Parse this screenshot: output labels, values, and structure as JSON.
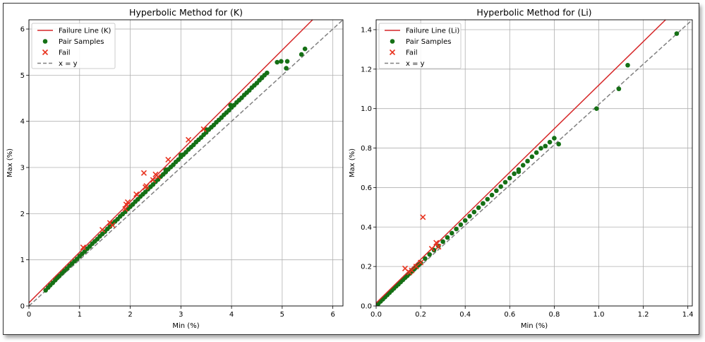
{
  "colors": {
    "failure_line": "#d62728",
    "pair_samples": "#157015",
    "fail": "#e8331f",
    "identity": "#808080",
    "grid": "#b0b0b0"
  },
  "chart_data": [
    {
      "type": "scatter",
      "title": "Hyperbolic Method for (K)",
      "xlabel": "Min (%)",
      "ylabel": "Max (%)",
      "xlim": [
        0,
        6.2
      ],
      "ylim": [
        0,
        6.2
      ],
      "xticks": [
        0,
        1,
        2,
        3,
        4,
        5,
        6
      ],
      "yticks": [
        0,
        1,
        2,
        3,
        4,
        5,
        6
      ],
      "grid": true,
      "legend_position": "top-left",
      "legend": [
        "Failure Line (K)",
        "Pair Samples",
        "Fail",
        "x = y"
      ],
      "failure_line": [
        [
          0,
          0.07
        ],
        [
          5.6,
          6.2
        ]
      ],
      "identity_line": [
        [
          0,
          0
        ],
        [
          6.2,
          6.2
        ]
      ],
      "series": [
        {
          "name": "Pair Samples",
          "x": [
            0.33,
            0.38,
            0.42,
            0.47,
            0.52,
            0.56,
            0.6,
            0.65,
            0.7,
            0.75,
            0.8,
            0.85,
            0.9,
            0.95,
            1.0,
            1.05,
            1.1,
            1.15,
            1.2,
            1.25,
            1.3,
            1.35,
            1.4,
            1.45,
            1.5,
            1.55,
            1.6,
            1.65,
            1.7,
            1.75,
            1.8,
            1.85,
            1.9,
            1.95,
            2.0,
            2.05,
            2.1,
            2.15,
            2.2,
            2.25,
            2.3,
            2.35,
            2.4,
            2.45,
            2.5,
            2.55,
            2.6,
            2.65,
            2.7,
            2.75,
            2.8,
            2.85,
            2.9,
            2.95,
            3.0,
            3.05,
            3.1,
            3.15,
            3.2,
            3.25,
            3.3,
            3.35,
            3.4,
            3.45,
            3.5,
            3.55,
            3.6,
            3.65,
            3.7,
            3.75,
            3.8,
            3.85,
            3.9,
            3.95,
            4.0,
            4.05,
            4.1,
            4.15,
            4.2,
            4.25,
            4.3,
            4.35,
            4.4,
            4.45,
            4.5,
            4.55,
            4.6,
            4.65,
            4.7,
            2.7,
            3.0,
            3.5,
            3.98,
            4.6,
            4.9,
            4.98,
            5.08,
            5.1,
            5.38,
            5.45
          ],
          "y": [
            0.34,
            0.4,
            0.45,
            0.5,
            0.56,
            0.61,
            0.65,
            0.71,
            0.76,
            0.81,
            0.87,
            0.92,
            0.97,
            1.02,
            1.08,
            1.13,
            1.18,
            1.24,
            1.29,
            1.35,
            1.4,
            1.45,
            1.51,
            1.56,
            1.61,
            1.67,
            1.72,
            1.78,
            1.83,
            1.88,
            1.94,
            1.99,
            2.04,
            2.1,
            2.15,
            2.2,
            2.26,
            2.31,
            2.37,
            2.42,
            2.47,
            2.53,
            2.58,
            2.63,
            2.69,
            2.74,
            2.8,
            2.85,
            2.9,
            2.96,
            3.01,
            3.06,
            3.12,
            3.17,
            3.23,
            3.28,
            3.33,
            3.39,
            3.44,
            3.49,
            3.55,
            3.6,
            3.65,
            3.71,
            3.76,
            3.82,
            3.87,
            3.92,
            3.98,
            4.03,
            4.08,
            4.14,
            4.19,
            4.24,
            4.3,
            4.35,
            4.41,
            4.46,
            4.51,
            4.57,
            4.62,
            4.67,
            4.73,
            4.78,
            4.83,
            4.89,
            4.94,
            5.0,
            5.05,
            2.95,
            3.27,
            3.82,
            4.35,
            4.95,
            5.28,
            5.3,
            5.15,
            5.3,
            5.45,
            5.57
          ]
        },
        {
          "name": "Fail",
          "x": [
            1.07,
            1.45,
            1.6,
            1.65,
            1.9,
            1.92,
            1.95,
            2.12,
            2.27,
            2.3,
            2.32,
            2.45,
            2.5,
            2.55,
            2.75,
            3.15,
            3.45
          ],
          "y": [
            1.27,
            1.65,
            1.8,
            1.75,
            2.1,
            2.2,
            2.25,
            2.42,
            2.88,
            2.57,
            2.6,
            2.73,
            2.85,
            2.8,
            3.17,
            3.6,
            3.83
          ]
        }
      ]
    },
    {
      "type": "scatter",
      "title": "Hyperbolic Method for (Li)",
      "xlabel": "Min (%)",
      "ylabel": "Max (%)",
      "xlim": [
        0,
        1.42
      ],
      "ylim": [
        0,
        1.45
      ],
      "xticks": [
        0,
        0.2,
        0.4,
        0.6,
        0.8,
        1.0,
        1.2,
        1.4
      ],
      "xtick_labels": [
        "0.0",
        "0.2",
        "0.4",
        "0.6",
        "0.8",
        "1.0",
        "1.2",
        "1.4"
      ],
      "yticks": [
        0,
        0.2,
        0.4,
        0.6,
        0.8,
        1.0,
        1.2,
        1.4
      ],
      "ytick_labels": [
        "0.0",
        "0.2",
        "0.4",
        "0.6",
        "0.8",
        "1.0",
        "1.2",
        "1.4"
      ],
      "grid": true,
      "legend_position": "top-left",
      "legend": [
        "Failure Line (Li)",
        "Pair Samples",
        "Fail",
        "x = y"
      ],
      "failure_line": [
        [
          0,
          0.015
        ],
        [
          1.3,
          1.45
        ]
      ],
      "identity_line": [
        [
          0,
          0
        ],
        [
          1.42,
          1.45
        ]
      ],
      "series": [
        {
          "name": "Pair Samples",
          "x": [
            0.01,
            0.02,
            0.03,
            0.04,
            0.05,
            0.06,
            0.07,
            0.08,
            0.09,
            0.1,
            0.11,
            0.12,
            0.13,
            0.14,
            0.15,
            0.16,
            0.17,
            0.18,
            0.19,
            0.2,
            0.22,
            0.24,
            0.26,
            0.28,
            0.3,
            0.32,
            0.34,
            0.36,
            0.38,
            0.4,
            0.42,
            0.44,
            0.46,
            0.48,
            0.5,
            0.52,
            0.54,
            0.56,
            0.58,
            0.6,
            0.62,
            0.64,
            0.66,
            0.68,
            0.7,
            0.72,
            0.74,
            0.76,
            0.78,
            0.48,
            0.64,
            0.8,
            0.82,
            0.99,
            1.09,
            1.13,
            1.35
          ],
          "y": [
            0.012,
            0.023,
            0.034,
            0.045,
            0.056,
            0.067,
            0.078,
            0.089,
            0.1,
            0.11,
            0.121,
            0.132,
            0.143,
            0.153,
            0.164,
            0.175,
            0.186,
            0.197,
            0.207,
            0.218,
            0.24,
            0.261,
            0.283,
            0.304,
            0.326,
            0.347,
            0.369,
            0.39,
            0.412,
            0.433,
            0.455,
            0.476,
            0.498,
            0.519,
            0.541,
            0.562,
            0.584,
            0.605,
            0.627,
            0.648,
            0.67,
            0.691,
            0.713,
            0.734,
            0.756,
            0.777,
            0.799,
            0.81,
            0.83,
            0.52,
            0.68,
            0.85,
            0.82,
            1.0,
            1.1,
            1.22,
            1.38
          ]
        },
        {
          "name": "Fail",
          "x": [
            0.13,
            0.15,
            0.16,
            0.18,
            0.2,
            0.21,
            0.25,
            0.27,
            0.28
          ],
          "y": [
            0.19,
            0.17,
            0.18,
            0.2,
            0.22,
            0.45,
            0.29,
            0.32,
            0.3
          ]
        }
      ]
    }
  ]
}
